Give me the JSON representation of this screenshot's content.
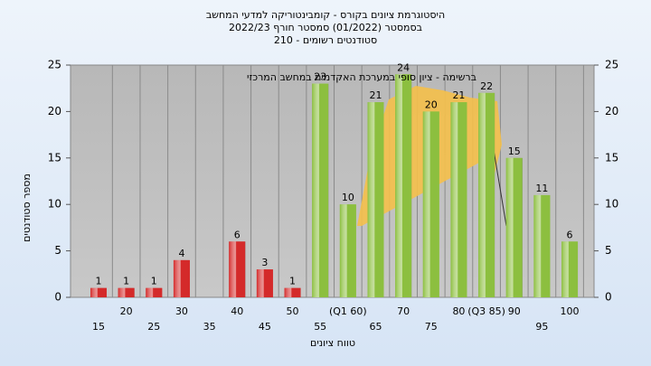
{
  "chart_data": {
    "type": "bar",
    "title": [
      "היסטוגרמת ציונים בקורס - קומבינטוריקה למדעי המחשב",
      "בסמסטר  (01/2022)  סמסטר חורף 2022/23",
      "סטודנטים רשומים - 210"
    ],
    "annotation": "ברשימה - ציון סופי במערכת האקדמית במחשב המרכזי",
    "x_label": "טווח ציונים",
    "y_label": "מספר סטודנטים",
    "categories": [
      "15",
      "20",
      "25",
      "30",
      "35",
      "40",
      "45",
      "50",
      "55",
      "(Q1 60)",
      "65",
      "70",
      "75",
      "80",
      "(Q3 85)",
      "90",
      "95",
      "100"
    ],
    "values": [
      1,
      1,
      1,
      4,
      0,
      6,
      3,
      1,
      23,
      10,
      21,
      24,
      20,
      21,
      22,
      15,
      11,
      6
    ],
    "colors": [
      "#d42a2a",
      "#d42a2a",
      "#d42a2a",
      "#d42a2a",
      "#d42a2a",
      "#d42a2a",
      "#d42a2a",
      "#d42a2a",
      "#8cbf3f",
      "#8cbf3f",
      "#8cbf3f",
      "#8cbf3f",
      "#8cbf3f",
      "#8cbf3f",
      "#8cbf3f",
      "#8cbf3f",
      "#8cbf3f",
      "#8cbf3f"
    ],
    "ylim": [
      0,
      25
    ],
    "yticks": [
      0,
      5,
      10,
      15,
      20,
      25
    ],
    "y2lim": [
      0,
      25
    ],
    "y2ticks": [
      0,
      5,
      10,
      15,
      20,
      25
    ],
    "grid": true
  }
}
